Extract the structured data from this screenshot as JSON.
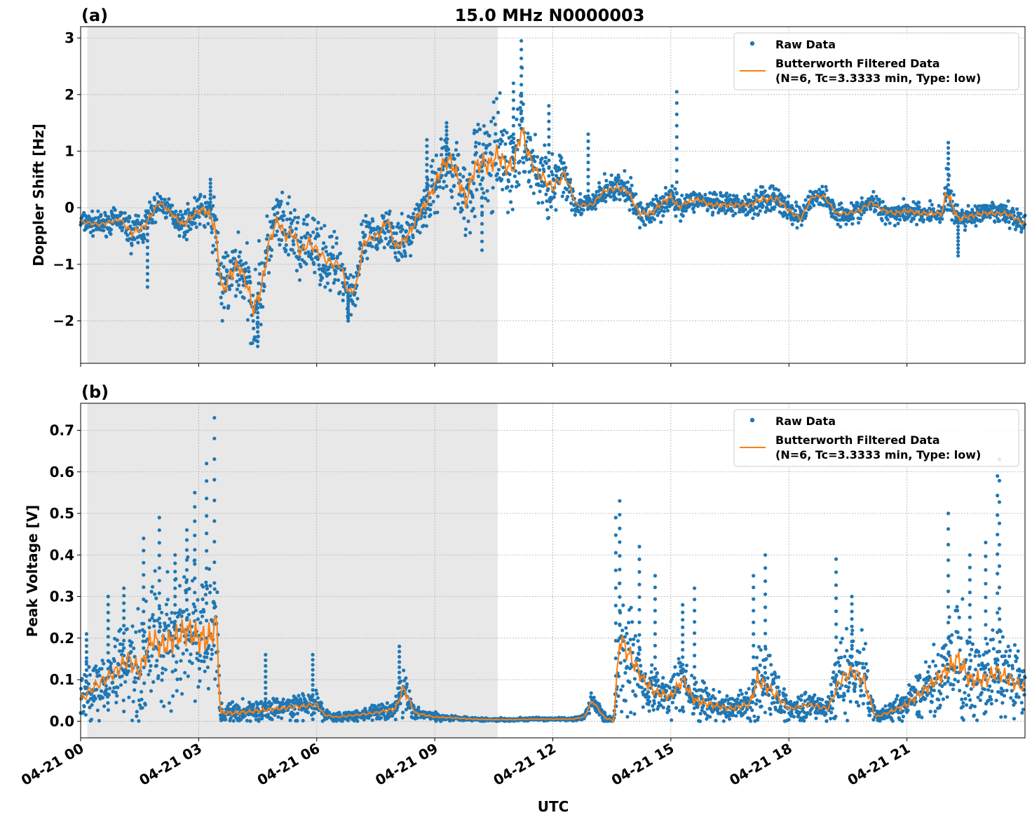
{
  "figure": {
    "title": "15.0 MHz N0000003",
    "xlabel": "UTC"
  },
  "colors": {
    "raw": "#1f77b4",
    "filtered": "#ff7f0e",
    "shade": "#e8e8e8",
    "grid": "#b0b0b0"
  },
  "legend": {
    "raw_label": "Raw Data",
    "filtered_label_line1": "Butterworth Filtered Data",
    "filtered_label_line2": "(N=6, Tc=3.3333 min, Type: low)"
  },
  "chart_data": [
    {
      "type": "scatter",
      "panel_label": "(a)",
      "ylabel": "Doppler Shift [Hz]",
      "xlim_hours": [
        0,
        24
      ],
      "ylim": [
        -2.75,
        3.2
      ],
      "yticks": [
        -2,
        -1,
        0,
        1,
        2,
        3
      ],
      "ytick_labels": [
        "−2",
        "−1",
        "0",
        "1",
        "2",
        "3"
      ],
      "shaded_region_hours": [
        0.17,
        10.6
      ],
      "grid": true,
      "legend_position": "top-right",
      "x_hours": [
        0,
        0.5,
        1,
        1.3,
        1.6,
        2,
        2.3,
        2.6,
        3,
        3.2,
        3.4,
        3.6,
        3.8,
        4,
        4.2,
        4.4,
        4.6,
        4.8,
        5,
        5.2,
        5.4,
        5.6,
        5.8,
        6,
        6.2,
        6.4,
        6.6,
        6.8,
        7,
        7.2,
        7.4,
        7.6,
        7.8,
        8,
        8.2,
        8.4,
        8.6,
        8.8,
        9,
        9.2,
        9.4,
        9.6,
        9.8,
        10,
        10.2,
        10.4,
        10.6,
        10.8,
        11,
        11.2,
        11.4,
        11.6,
        11.8,
        12,
        12.3,
        12.6,
        12.9,
        13,
        13.3,
        13.6,
        13.9,
        14.2,
        14.5,
        14.8,
        15,
        15.2,
        15.4,
        15.7,
        16,
        16.3,
        16.6,
        17,
        17.3,
        17.7,
        18,
        18.3,
        18.6,
        18.9,
        19.2,
        19.5,
        19.8,
        20.1,
        20.4,
        20.7,
        21,
        21.3,
        21.6,
        21.9,
        22,
        22.3,
        22.6,
        22.9,
        23.2,
        23.5,
        23.8,
        24
      ],
      "filtered": [
        -0.25,
        -0.3,
        -0.2,
        -0.45,
        -0.35,
        0.1,
        -0.1,
        -0.3,
        -0.05,
        -0.05,
        -0.3,
        -1.5,
        -1.2,
        -1.0,
        -1.3,
        -1.8,
        -1.4,
        -0.6,
        -0.2,
        -0.5,
        -0.45,
        -0.8,
        -0.6,
        -0.75,
        -0.9,
        -1.0,
        -1.0,
        -1.5,
        -1.4,
        -0.6,
        -0.55,
        -0.45,
        -0.2,
        -0.7,
        -0.6,
        -0.4,
        -0.1,
        0.1,
        0.4,
        0.75,
        0.85,
        0.5,
        0.1,
        0.7,
        0.8,
        0.75,
        0.95,
        0.75,
        0.7,
        1.4,
        0.9,
        0.6,
        0.5,
        0.35,
        0.6,
        0.05,
        0.05,
        0.05,
        0.3,
        0.35,
        0.3,
        -0.1,
        -0.1,
        0.1,
        0.2,
        0.0,
        0.1,
        0.15,
        0.05,
        0.05,
        0.05,
        0.05,
        0.15,
        0.15,
        -0.05,
        -0.2,
        0.2,
        0.2,
        -0.1,
        -0.1,
        -0.05,
        0.1,
        -0.05,
        -0.1,
        -0.05,
        -0.1,
        -0.1,
        -0.1,
        0.3,
        -0.2,
        -0.15,
        -0.1,
        -0.1,
        -0.1,
        -0.2,
        -0.3
      ],
      "spread": [
        0.15,
        0.15,
        0.15,
        0.25,
        0.25,
        0.15,
        0.15,
        0.2,
        0.2,
        0.3,
        0.4,
        0.5,
        0.5,
        0.5,
        0.5,
        0.55,
        0.6,
        0.5,
        0.4,
        0.45,
        0.45,
        0.45,
        0.45,
        0.45,
        0.4,
        0.4,
        0.4,
        0.35,
        0.35,
        0.35,
        0.3,
        0.3,
        0.3,
        0.3,
        0.3,
        0.3,
        0.3,
        0.35,
        0.4,
        0.45,
        0.5,
        0.55,
        0.55,
        0.6,
        0.65,
        0.7,
        0.7,
        0.7,
        0.65,
        0.7,
        0.55,
        0.5,
        0.5,
        0.45,
        0.4,
        0.15,
        0.15,
        0.15,
        0.2,
        0.2,
        0.2,
        0.2,
        0.2,
        0.2,
        0.2,
        0.15,
        0.15,
        0.15,
        0.15,
        0.15,
        0.15,
        0.15,
        0.2,
        0.2,
        0.2,
        0.15,
        0.15,
        0.15,
        0.15,
        0.15,
        0.15,
        0.15,
        0.15,
        0.15,
        0.15,
        0.15,
        0.15,
        0.15,
        0.3,
        0.2,
        0.15,
        0.15,
        0.15,
        0.15,
        0.15,
        0.15
      ],
      "spikes": [
        [
          1.7,
          -1.4
        ],
        [
          3.3,
          0.5
        ],
        [
          4.5,
          -2.45
        ],
        [
          6.8,
          -2.0
        ],
        [
          8.8,
          1.2
        ],
        [
          9.3,
          1.5
        ],
        [
          10.2,
          -0.75
        ],
        [
          11.0,
          2.2
        ],
        [
          11.2,
          2.95
        ],
        [
          11.9,
          1.8
        ],
        [
          12.9,
          1.3
        ],
        [
          15.15,
          2.05
        ],
        [
          22.05,
          1.15
        ],
        [
          22.3,
          -0.85
        ]
      ]
    },
    {
      "type": "scatter",
      "panel_label": "(b)",
      "ylabel": "Peak Voltage [V]",
      "xlim_hours": [
        0,
        24
      ],
      "ylim": [
        -0.04,
        0.765
      ],
      "yticks": [
        0.0,
        0.1,
        0.2,
        0.3,
        0.4,
        0.5,
        0.6,
        0.7
      ],
      "ytick_labels": [
        "0.0",
        "0.1",
        "0.2",
        "0.3",
        "0.4",
        "0.5",
        "0.6",
        "0.7"
      ],
      "xticks_hours": [
        0,
        3,
        6,
        9,
        12,
        15,
        18,
        21
      ],
      "xtick_labels": [
        "04-21 00",
        "04-21 03",
        "04-21 06",
        "04-21 09",
        "04-21 12",
        "04-21 15",
        "04-21 18",
        "04-21 21"
      ],
      "shaded_region_hours": [
        0.17,
        10.6
      ],
      "grid": true,
      "legend_position": "top-right",
      "x_hours": [
        0,
        0.3,
        0.6,
        0.9,
        1.2,
        1.5,
        1.8,
        2.1,
        2.4,
        2.7,
        3.0,
        3.3,
        3.45,
        3.55,
        4,
        4.5,
        5,
        5.5,
        6,
        6.2,
        6.5,
        7,
        7.5,
        8,
        8.2,
        8.5,
        9,
        9.5,
        10,
        10.5,
        11,
        11.5,
        12,
        12.5,
        12.8,
        13,
        13.3,
        13.55,
        13.7,
        14,
        14.3,
        14.6,
        15,
        15.3,
        15.6,
        16,
        16.5,
        17,
        17.2,
        17.6,
        18,
        18.5,
        19,
        19.3,
        19.6,
        19.9,
        20.2,
        20.5,
        21,
        21.5,
        22,
        22.3,
        22.6,
        23,
        23.3,
        23.6,
        24
      ],
      "filtered": [
        0.05,
        0.08,
        0.1,
        0.12,
        0.15,
        0.12,
        0.2,
        0.18,
        0.2,
        0.22,
        0.2,
        0.2,
        0.25,
        0.02,
        0.02,
        0.025,
        0.03,
        0.035,
        0.04,
        0.015,
        0.01,
        0.015,
        0.02,
        0.03,
        0.08,
        0.02,
        0.01,
        0.008,
        0.005,
        0.004,
        0.004,
        0.005,
        0.005,
        0.005,
        0.01,
        0.05,
        0.01,
        0.0,
        0.2,
        0.15,
        0.1,
        0.07,
        0.06,
        0.1,
        0.05,
        0.04,
        0.03,
        0.04,
        0.1,
        0.07,
        0.03,
        0.04,
        0.03,
        0.1,
        0.12,
        0.1,
        0.01,
        0.02,
        0.04,
        0.08,
        0.12,
        0.15,
        0.1,
        0.1,
        0.12,
        0.1,
        0.08
      ],
      "spread": [
        0.06,
        0.06,
        0.07,
        0.08,
        0.1,
        0.1,
        0.12,
        0.12,
        0.12,
        0.13,
        0.13,
        0.13,
        0.12,
        0.02,
        0.02,
        0.02,
        0.02,
        0.025,
        0.025,
        0.01,
        0.01,
        0.01,
        0.015,
        0.02,
        0.05,
        0.01,
        0.008,
        0.005,
        0.003,
        0.003,
        0.003,
        0.003,
        0.003,
        0.003,
        0.005,
        0.02,
        0.01,
        0.01,
        0.12,
        0.1,
        0.06,
        0.05,
        0.04,
        0.06,
        0.04,
        0.03,
        0.02,
        0.03,
        0.08,
        0.06,
        0.02,
        0.03,
        0.02,
        0.08,
        0.08,
        0.08,
        0.01,
        0.015,
        0.03,
        0.05,
        0.08,
        0.1,
        0.08,
        0.08,
        0.08,
        0.08,
        0.06
      ],
      "spikes": [
        [
          0.15,
          0.21
        ],
        [
          0.7,
          0.3
        ],
        [
          1.1,
          0.32
        ],
        [
          1.6,
          0.44
        ],
        [
          2.0,
          0.49
        ],
        [
          2.4,
          0.4
        ],
        [
          2.7,
          0.46
        ],
        [
          2.9,
          0.55
        ],
        [
          3.2,
          0.62
        ],
        [
          3.4,
          0.73
        ],
        [
          4.7,
          0.16
        ],
        [
          5.9,
          0.16
        ],
        [
          8.1,
          0.18
        ],
        [
          13.6,
          0.49
        ],
        [
          13.7,
          0.53
        ],
        [
          14.2,
          0.42
        ],
        [
          14.6,
          0.35
        ],
        [
          15.3,
          0.28
        ],
        [
          15.6,
          0.32
        ],
        [
          17.1,
          0.35
        ],
        [
          17.4,
          0.4
        ],
        [
          19.2,
          0.39
        ],
        [
          19.6,
          0.3
        ],
        [
          22.05,
          0.5
        ],
        [
          22.6,
          0.4
        ],
        [
          23.0,
          0.43
        ],
        [
          23.3,
          0.59
        ],
        [
          23.35,
          0.63
        ]
      ]
    }
  ]
}
